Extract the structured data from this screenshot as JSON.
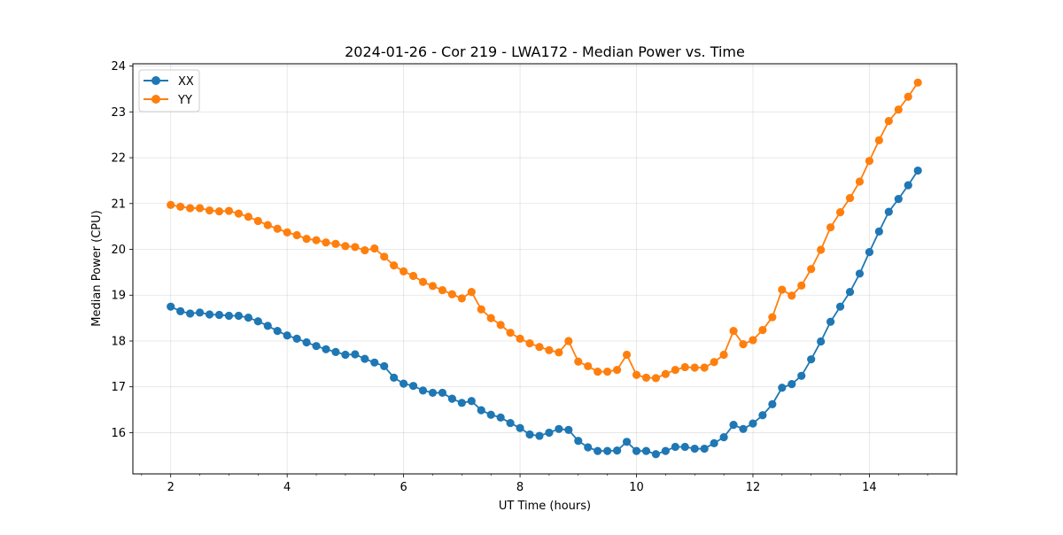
{
  "chart_data": {
    "type": "line",
    "title": "2024-01-26 - Cor 219 - LWA172 - Median Power vs. Time",
    "xlabel": "UT Time (hours)",
    "ylabel": "Median Power (CPU)",
    "xlim": [
      1.35,
      15.5
    ],
    "ylim": [
      15.1,
      24.05
    ],
    "xticks": [
      2,
      4,
      6,
      8,
      10,
      12,
      14
    ],
    "xtick_labels": [
      "2",
      "4",
      "6",
      "8",
      "10",
      "12",
      "14"
    ],
    "yticks": [
      16,
      17,
      18,
      19,
      20,
      21,
      22,
      23,
      24
    ],
    "ytick_labels": [
      "16",
      "17",
      "18",
      "19",
      "20",
      "21",
      "22",
      "23",
      "24"
    ],
    "grid": true,
    "legend_position": "top-left",
    "x": [
      2.0,
      2.1667,
      2.3333,
      2.5,
      2.6667,
      2.8333,
      3.0,
      3.1667,
      3.3333,
      3.5,
      3.6667,
      3.8333,
      4.0,
      4.1667,
      4.3333,
      4.5,
      4.6667,
      4.8333,
      5.0,
      5.1667,
      5.3333,
      5.5,
      5.6667,
      5.8333,
      6.0,
      6.1667,
      6.3333,
      6.5,
      6.6667,
      6.8333,
      7.0,
      7.1667,
      7.3333,
      7.5,
      7.6667,
      7.8333,
      8.0,
      8.1667,
      8.3333,
      8.5,
      8.6667,
      8.8333,
      9.0,
      9.1667,
      9.3333,
      9.5,
      9.6667,
      9.8333,
      10.0,
      10.1667,
      10.3333,
      10.5,
      10.6667,
      10.8333,
      11.0,
      11.1667,
      11.3333,
      11.5,
      11.6667,
      11.8333,
      12.0,
      12.1667,
      12.3333,
      12.5,
      12.6667,
      12.8333,
      13.0,
      13.1667,
      13.3333,
      13.5,
      13.6667,
      13.8333,
      14.0,
      14.1667,
      14.3333,
      14.5,
      14.6667,
      14.8333
    ],
    "series": [
      {
        "name": "XX",
        "color": "#1f77b4",
        "values": [
          18.75,
          18.65,
          18.6,
          18.62,
          18.58,
          18.57,
          18.55,
          18.55,
          18.51,
          18.43,
          18.33,
          18.22,
          18.12,
          18.05,
          17.97,
          17.89,
          17.82,
          17.76,
          17.7,
          17.71,
          17.61,
          17.53,
          17.45,
          17.2,
          17.07,
          17.02,
          16.92,
          16.87,
          16.87,
          16.74,
          16.65,
          16.69,
          16.49,
          16.39,
          16.33,
          16.21,
          16.1,
          15.96,
          15.93,
          16.0,
          16.08,
          16.06,
          15.82,
          15.68,
          15.6,
          15.6,
          15.61,
          15.8,
          15.6,
          15.6,
          15.53,
          15.6,
          15.69,
          15.69,
          15.65,
          15.65,
          15.77,
          15.9,
          16.17,
          16.08,
          16.2,
          16.38,
          16.62,
          16.98,
          17.06,
          17.24,
          17.6,
          17.99,
          18.42,
          18.75,
          19.07,
          19.47,
          19.94,
          20.39,
          20.82,
          21.1,
          21.4,
          21.72
        ]
      },
      {
        "name": "YY",
        "color": "#ff7f0e",
        "values": [
          20.97,
          20.93,
          20.9,
          20.9,
          20.85,
          20.83,
          20.84,
          20.78,
          20.71,
          20.62,
          20.53,
          20.45,
          20.37,
          20.31,
          20.23,
          20.2,
          20.15,
          20.12,
          20.07,
          20.05,
          19.98,
          20.02,
          19.84,
          19.65,
          19.52,
          19.42,
          19.29,
          19.2,
          19.11,
          19.02,
          18.93,
          19.07,
          18.69,
          18.5,
          18.35,
          18.18,
          18.05,
          17.95,
          17.87,
          17.8,
          17.75,
          18.0,
          17.55,
          17.45,
          17.33,
          17.33,
          17.37,
          17.7,
          17.26,
          17.2,
          17.19,
          17.28,
          17.37,
          17.43,
          17.42,
          17.42,
          17.54,
          17.7,
          18.22,
          17.93,
          18.02,
          18.24,
          18.52,
          19.12,
          18.99,
          19.21,
          19.57,
          19.99,
          20.48,
          20.81,
          21.12,
          21.48,
          21.93,
          22.38,
          22.8,
          23.05,
          23.33,
          23.64
        ]
      }
    ]
  }
}
